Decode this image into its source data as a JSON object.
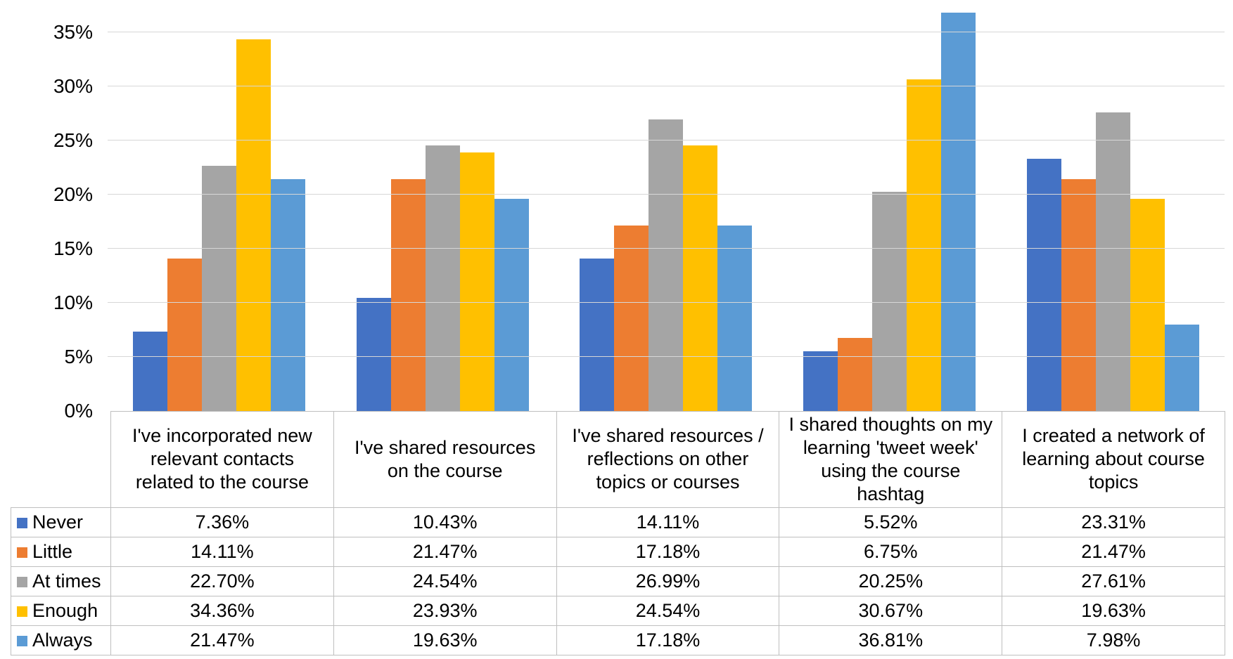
{
  "chart_data": {
    "type": "bar",
    "title": "",
    "categories": [
      "I've incorporated new relevant contacts related to the course",
      "I've shared resources on the course",
      "I've shared resources / reflections on other topics or courses",
      "I shared thoughts on my learning 'tweet week' using the course hashtag",
      "I created a network of learning about course topics"
    ],
    "series": [
      {
        "name": "Never",
        "color": "#4472C4",
        "values": [
          7.36,
          10.43,
          14.11,
          5.52,
          23.31
        ]
      },
      {
        "name": "Little",
        "color": "#ED7D31",
        "values": [
          14.11,
          21.47,
          17.18,
          6.75,
          21.47
        ]
      },
      {
        "name": "At times",
        "color": "#A5A5A5",
        "values": [
          22.7,
          24.54,
          26.99,
          20.25,
          27.61
        ]
      },
      {
        "name": "Enough",
        "color": "#FFC000",
        "values": [
          34.36,
          23.93,
          24.54,
          30.67,
          19.63
        ]
      },
      {
        "name": "Always",
        "color": "#5B9BD5",
        "values": [
          21.47,
          19.63,
          17.18,
          36.81,
          7.98
        ]
      }
    ],
    "value_label_suffix": "%",
    "y_axis": {
      "tick_labels": [
        "0%",
        "5%",
        "10%",
        "15%",
        "20%",
        "25%",
        "30%",
        "35%"
      ],
      "tick_values": [
        0,
        5,
        10,
        15,
        20,
        25,
        30,
        35
      ],
      "min": 0,
      "max": 38,
      "grid": true
    },
    "xlabel": "",
    "ylabel": "",
    "legend_position": "table-left",
    "table_shown": true
  },
  "colors": {
    "gridline": "#D7D7D7",
    "table_border": "#BFBFBF",
    "background": "#FFFFFF"
  }
}
